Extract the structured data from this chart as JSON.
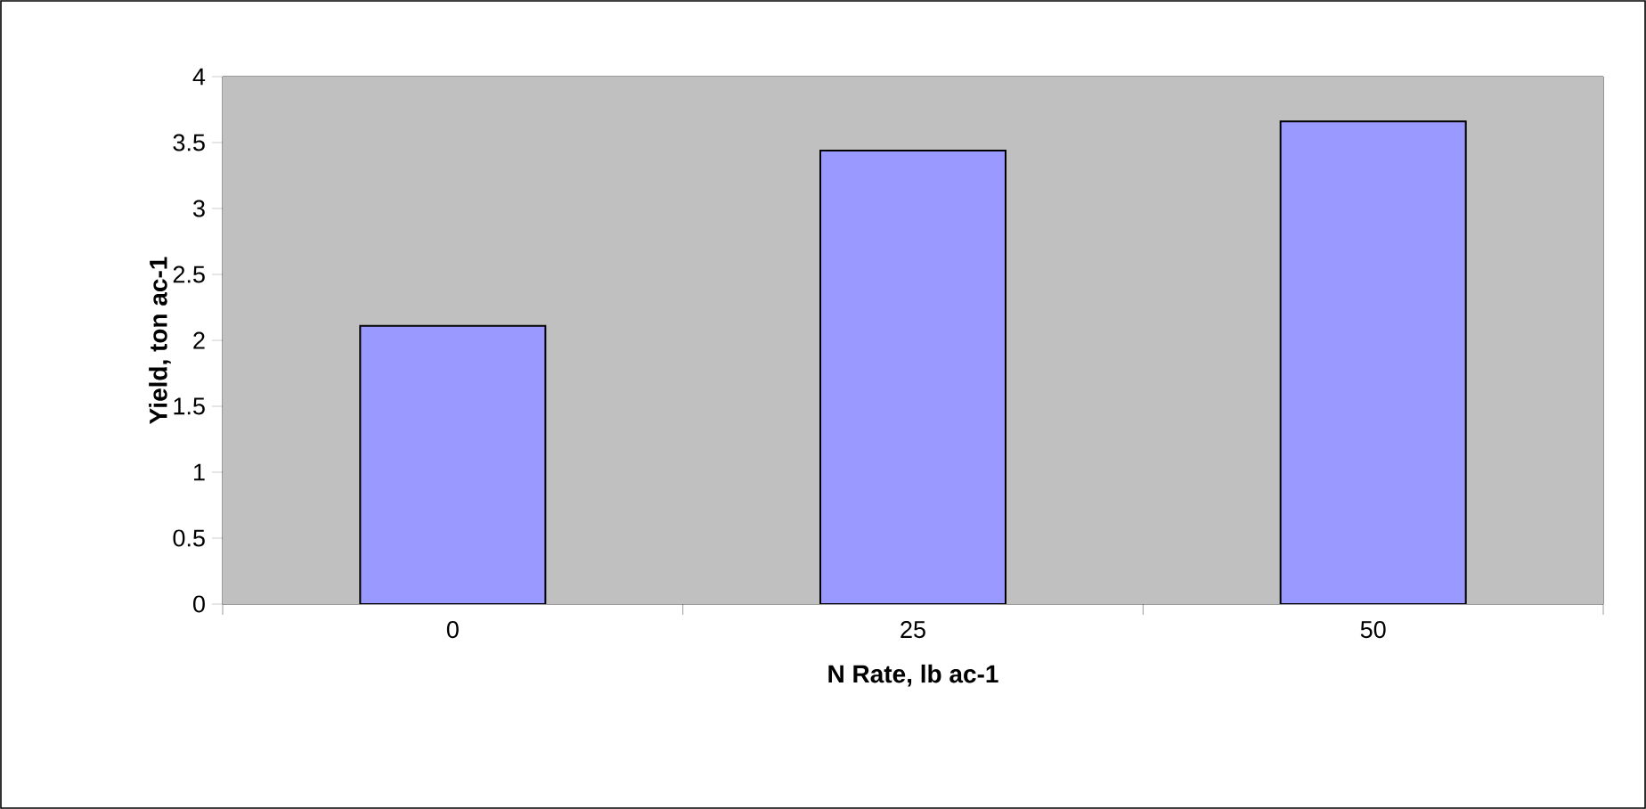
{
  "chart_data": {
    "type": "bar",
    "xlabel": "N Rate, lb ac-1",
    "ylabel": "Yield, ton ac-1",
    "categories": [
      "0",
      "25",
      "50"
    ],
    "values": [
      2.11,
      3.44,
      3.66
    ],
    "color": "#9999ff",
    "ylim": [
      0,
      4
    ],
    "yticks": [
      0,
      0.5,
      1,
      1.5,
      2,
      2.5,
      3,
      3.5,
      4
    ],
    "grid": false
  }
}
